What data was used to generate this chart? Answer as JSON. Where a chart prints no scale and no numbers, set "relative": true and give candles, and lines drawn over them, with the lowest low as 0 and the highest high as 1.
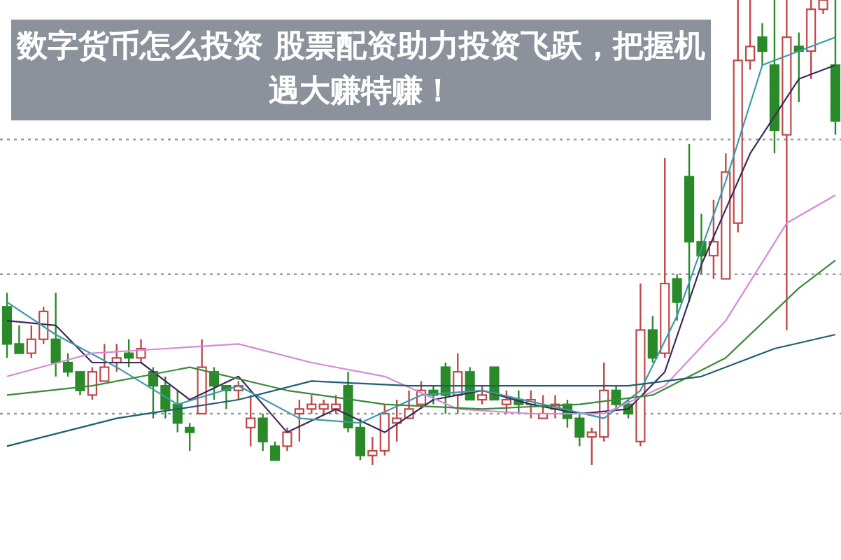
{
  "chart_data": {
    "type": "candlestick",
    "title": "数字货币怎么投资 股票配资助力投资飞跃，把握机遇大赚特赚！",
    "relative": true,
    "categories": [
      null,
      null,
      null,
      null,
      null,
      null,
      null,
      null,
      null,
      null,
      null,
      null,
      null,
      null,
      null,
      null,
      null,
      null,
      null,
      null,
      null,
      null,
      null,
      null,
      null,
      null,
      null,
      null,
      null,
      null,
      null,
      null,
      null,
      null,
      null,
      null,
      null,
      null,
      null,
      null,
      null,
      null,
      null,
      null,
      null,
      null,
      null,
      null,
      null,
      null,
      null,
      null,
      null,
      null,
      null,
      null,
      null,
      null,
      null,
      null,
      null,
      null,
      null,
      null,
      null,
      null,
      null,
      null,
      null
    ],
    "ohlc": [
      [
        0.34,
        0.37,
        0.23,
        0.26
      ],
      [
        0.26,
        0.3,
        0.24,
        0.24
      ],
      [
        0.24,
        0.3,
        0.23,
        0.27
      ],
      [
        0.27,
        0.34,
        0.26,
        0.33
      ],
      [
        0.27,
        0.37,
        0.19,
        0.22
      ],
      [
        0.22,
        0.24,
        0.19,
        0.2
      ],
      [
        0.2,
        0.2,
        0.15,
        0.16
      ],
      [
        0.15,
        0.21,
        0.14,
        0.2
      ],
      [
        0.18,
        0.26,
        0.18,
        0.21
      ],
      [
        0.22,
        0.26,
        0.2,
        0.23
      ],
      [
        0.24,
        0.27,
        0.21,
        0.23
      ],
      [
        0.23,
        0.27,
        0.22,
        0.25
      ],
      [
        0.2,
        0.21,
        0.1,
        0.17
      ],
      [
        0.17,
        0.19,
        0.1,
        0.12
      ],
      [
        0.13,
        0.16,
        0.07,
        0.09
      ],
      [
        0.08,
        0.09,
        0.03,
        0.07
      ],
      [
        0.11,
        0.27,
        0.11,
        0.21
      ],
      [
        0.2,
        0.21,
        0.14,
        0.17
      ],
      [
        0.17,
        0.17,
        0.12,
        0.16
      ],
      [
        0.16,
        0.18,
        0.14,
        0.17
      ],
      [
        0.08,
        0.15,
        0.04,
        0.1
      ],
      [
        0.1,
        0.11,
        0.03,
        0.05
      ],
      [
        0.04,
        0.05,
        0.01,
        0.01
      ],
      [
        0.04,
        0.08,
        0.03,
        0.07
      ],
      [
        0.11,
        0.14,
        0.05,
        0.12
      ],
      [
        0.12,
        0.15,
        0.11,
        0.13
      ],
      [
        0.12,
        0.14,
        0.11,
        0.13
      ],
      [
        0.12,
        0.15,
        0.11,
        0.13
      ],
      [
        0.17,
        0.2,
        0.07,
        0.08
      ],
      [
        0.08,
        0.1,
        0.01,
        0.02
      ],
      [
        0.02,
        0.06,
        0.0,
        0.03
      ],
      [
        0.03,
        0.13,
        0.02,
        0.11
      ],
      [
        0.09,
        0.14,
        0.05,
        0.1
      ],
      [
        0.1,
        0.16,
        0.1,
        0.12
      ],
      [
        0.13,
        0.18,
        0.12,
        0.16
      ],
      [
        0.16,
        0.17,
        0.13,
        0.15
      ],
      [
        0.21,
        0.22,
        0.11,
        0.15
      ],
      [
        0.15,
        0.24,
        0.11,
        0.2
      ],
      [
        0.2,
        0.21,
        0.14,
        0.14
      ],
      [
        0.14,
        0.17,
        0.13,
        0.15
      ],
      [
        0.21,
        0.21,
        0.14,
        0.14
      ],
      [
        0.13,
        0.16,
        0.11,
        0.14
      ],
      [
        0.14,
        0.16,
        0.11,
        0.13
      ],
      [
        0.13,
        0.16,
        0.1,
        0.14
      ],
      [
        0.1,
        0.15,
        0.1,
        0.11
      ],
      [
        0.12,
        0.15,
        0.1,
        0.13
      ],
      [
        0.13,
        0.14,
        0.08,
        0.1
      ],
      [
        0.1,
        0.11,
        0.04,
        0.06
      ],
      [
        0.06,
        0.08,
        0.0,
        0.07
      ],
      [
        0.06,
        0.22,
        0.05,
        0.16
      ],
      [
        0.16,
        0.17,
        0.12,
        0.13
      ],
      [
        0.13,
        0.14,
        0.1,
        0.11
      ],
      [
        0.05,
        0.39,
        0.04,
        0.29
      ],
      [
        0.29,
        0.32,
        0.22,
        0.23
      ],
      [
        0.24,
        0.66,
        0.23,
        0.39
      ],
      [
        0.4,
        0.41,
        0.31,
        0.35
      ],
      [
        0.62,
        0.69,
        0.35,
        0.48
      ],
      [
        0.48,
        0.54,
        0.41,
        0.45
      ],
      [
        0.45,
        0.57,
        0.4,
        0.48
      ],
      [
        0.4,
        0.67,
        0.4,
        0.63
      ],
      [
        0.52,
        1.0,
        0.5,
        0.87
      ],
      [
        0.87,
        1.0,
        0.85,
        0.9
      ],
      [
        0.92,
        0.95,
        0.86,
        0.89
      ],
      [
        0.86,
        1.0,
        0.67,
        0.72
      ],
      [
        0.71,
        1.0,
        0.29,
        0.92
      ],
      [
        0.9,
        0.93,
        0.78,
        0.89
      ],
      [
        0.89,
        1.0,
        0.83,
        0.98
      ],
      [
        0.98,
        1.0,
        0.97,
        1.0
      ],
      [
        0.86,
        1.0,
        0.71,
        0.74
      ]
    ],
    "colors": [
      "#2a8a2a",
      "#2a8a2a",
      "#c04848",
      "#c04848",
      "#2a8a2a",
      "#2a8a2a",
      "#2a8a2a",
      "#c04848",
      "#c04848",
      "#c04848",
      "#2a8a2a",
      "#c04848",
      "#2a8a2a",
      "#2a8a2a",
      "#2a8a2a",
      "#2a8a2a",
      "#c04848",
      "#2a8a2a",
      "#2a8a2a",
      "#c04848",
      "#c04848",
      "#2a8a2a",
      "#2a8a2a",
      "#c04848",
      "#c04848",
      "#c04848",
      "#c04848",
      "#c04848",
      "#2a8a2a",
      "#2a8a2a",
      "#c04848",
      "#c04848",
      "#c04848",
      "#c04848",
      "#c04848",
      "#2a8a2a",
      "#2a8a2a",
      "#c04848",
      "#2a8a2a",
      "#c04848",
      "#2a8a2a",
      "#c04848",
      "#2a8a2a",
      "#c04848",
      "#c04848",
      "#c04848",
      "#2a8a2a",
      "#2a8a2a",
      "#c04848",
      "#c04848",
      "#2a8a2a",
      "#2a8a2a",
      "#c04848",
      "#2a8a2a",
      "#c04848",
      "#2a8a2a",
      "#2a8a2a",
      "#2a8a2a",
      "#c04848",
      "#c04848",
      "#c04848",
      "#c04848",
      "#2a8a2a",
      "#2a8a2a",
      "#c04848",
      "#2a8a2a",
      "#c04848",
      "#c04848",
      "#2a8a2a"
    ],
    "series": [
      {
        "type": "line",
        "color": "#3d2a5a",
        "values": [
          0.31,
          null,
          null,
          null,
          0.3,
          null,
          null,
          0.22,
          null,
          null,
          null,
          0.22,
          null,
          null,
          null,
          0.14,
          null,
          null,
          null,
          0.19,
          null,
          null,
          null,
          0.07,
          null,
          null,
          null,
          0.12,
          null,
          null,
          null,
          0.07,
          null,
          null,
          null,
          0.14,
          null,
          null,
          null,
          0.16,
          null,
          null,
          null,
          0.13,
          null,
          null,
          null,
          0.11,
          null,
          null,
          null,
          0.12,
          null,
          null,
          0.2,
          null,
          null,
          0.43,
          null,
          null,
          null,
          0.67,
          null,
          null,
          null,
          0.83,
          null,
          null,
          0.86
        ]
      },
      {
        "type": "line",
        "color": "#3a9aaa",
        "values": [
          0.35,
          null,
          null,
          null,
          0.28,
          null,
          null,
          null,
          null,
          0.21,
          null,
          null,
          null,
          null,
          0.13,
          null,
          null,
          null,
          null,
          0.17,
          null,
          null,
          null,
          null,
          0.1,
          null,
          null,
          null,
          null,
          0.09,
          null,
          null,
          null,
          null,
          0.15,
          null,
          null,
          null,
          null,
          0.16,
          null,
          null,
          null,
          null,
          0.13,
          null,
          null,
          null,
          null,
          0.1,
          null,
          null,
          0.16,
          null,
          null,
          0.32,
          null,
          null,
          null,
          0.61,
          null,
          null,
          0.86,
          null,
          null,
          0.89,
          null,
          null,
          0.92
        ]
      },
      {
        "type": "line",
        "color": "#d68ad6",
        "values": [
          0.19,
          null,
          null,
          null,
          null,
          null,
          null,
          0.24,
          null,
          null,
          null,
          null,
          null,
          0.25,
          null,
          null,
          null,
          null,
          null,
          0.26,
          null,
          null,
          null,
          null,
          null,
          0.22,
          null,
          null,
          null,
          null,
          null,
          0.19,
          null,
          null,
          null,
          null,
          null,
          0.12,
          null,
          null,
          null,
          null,
          null,
          0.11,
          null,
          null,
          null,
          null,
          null,
          0.11,
          null,
          null,
          null,
          null,
          0.17,
          null,
          null,
          null,
          null,
          0.31,
          null,
          null,
          null,
          null,
          0.52,
          null,
          null,
          null,
          0.58
        ]
      },
      {
        "type": "line",
        "color": "#3a8a3a",
        "values": [
          0.15,
          null,
          null,
          null,
          null,
          null,
          null,
          0.17,
          null,
          null,
          null,
          null,
          null,
          null,
          null,
          0.21,
          null,
          null,
          null,
          null,
          null,
          null,
          null,
          0.16,
          null,
          null,
          null,
          null,
          null,
          null,
          null,
          0.13,
          null,
          null,
          null,
          null,
          null,
          null,
          null,
          0.12,
          null,
          null,
          null,
          null,
          null,
          null,
          null,
          0.13,
          null,
          null,
          null,
          null,
          null,
          0.15,
          null,
          null,
          null,
          null,
          null,
          0.23,
          null,
          null,
          null,
          null,
          null,
          0.38,
          null,
          null,
          0.44
        ]
      },
      {
        "type": "line",
        "color": "#1f5f6f",
        "values": [
          0.04,
          null,
          null,
          null,
          null,
          null,
          null,
          null,
          null,
          0.1,
          null,
          null,
          null,
          null,
          null,
          null,
          null,
          null,
          null,
          0.14,
          null,
          null,
          null,
          null,
          null,
          0.18,
          null,
          null,
          null,
          null,
          null,
          null,
          null,
          0.17,
          null,
          null,
          null,
          null,
          null,
          null,
          null,
          null,
          null,
          0.17,
          null,
          null,
          null,
          null,
          null,
          null,
          null,
          0.17,
          null,
          null,
          null,
          null,
          null,
          0.19,
          null,
          null,
          null,
          null,
          null,
          0.25,
          null,
          null,
          null,
          null,
          0.28
        ]
      }
    ],
    "ref_lines": [
      {
        "axis": "y",
        "value": 0.7,
        "color": "#999999",
        "line_style": "dotted"
      },
      {
        "axis": "y",
        "value": 0.41,
        "color": "#999999",
        "line_style": "dotted"
      },
      {
        "axis": "y",
        "value": 0.11,
        "color": "#999999",
        "line_style": "dotted"
      }
    ]
  }
}
